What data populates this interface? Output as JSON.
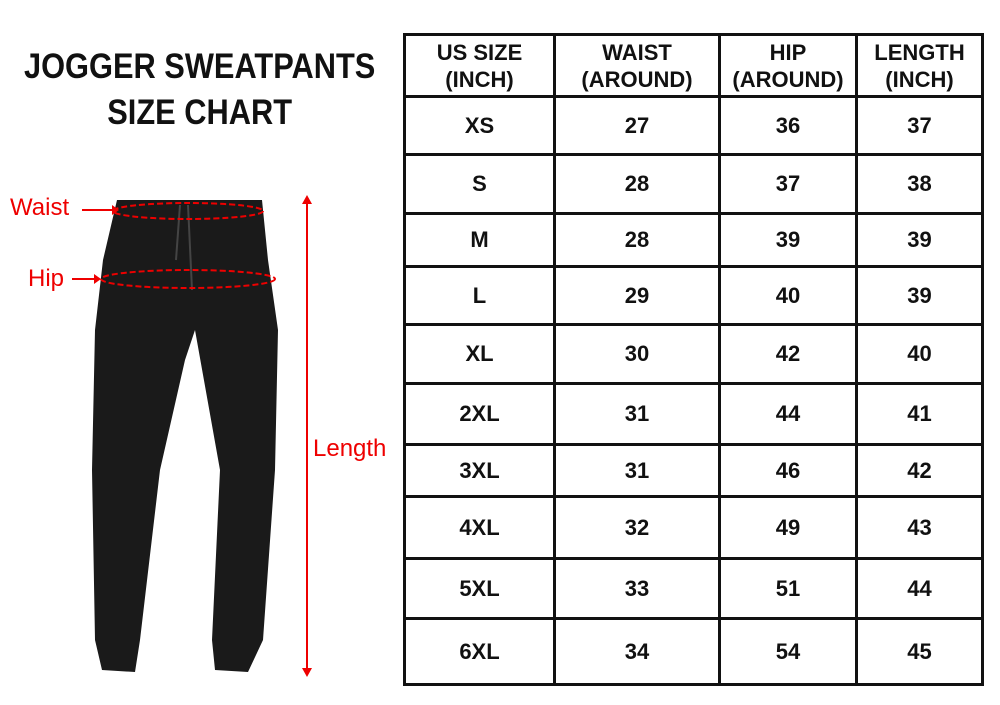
{
  "title_line1": "JOGGER SWEATPANTS",
  "title_line2": "SIZE CHART",
  "labels": {
    "waist": "Waist",
    "hip": "Hip",
    "length": "Length"
  },
  "accent": "#e00000",
  "headers": [
    [
      "US SIZE",
      "(INCH)"
    ],
    [
      "WAIST",
      "(AROUND)"
    ],
    [
      "HIP",
      "(AROUND)"
    ],
    [
      "LENGTH",
      "(INCH)"
    ]
  ],
  "rows": [
    [
      "XS",
      "27",
      "36",
      "37"
    ],
    [
      "S",
      "28",
      "37",
      "38"
    ],
    [
      "M",
      "28",
      "39",
      "39"
    ],
    [
      "L",
      "29",
      "40",
      "39"
    ],
    [
      "XL",
      "30",
      "42",
      "40"
    ],
    [
      "2XL",
      "31",
      "44",
      "41"
    ],
    [
      "3XL",
      "31",
      "46",
      "42"
    ],
    [
      "4XL",
      "32",
      "49",
      "43"
    ],
    [
      "5XL",
      "33",
      "51",
      "44"
    ],
    [
      "6XL",
      "34",
      "54",
      "45"
    ]
  ]
}
